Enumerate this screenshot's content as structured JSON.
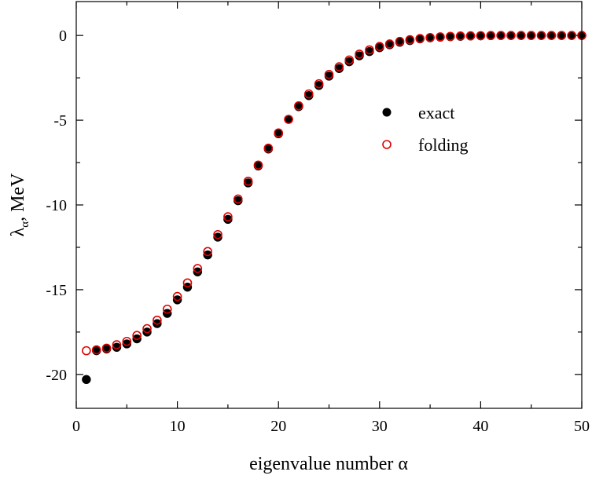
{
  "chart_data": {
    "type": "scatter",
    "title": "",
    "xlabel": "eigenvalue number α",
    "ylabel_main": "λ",
    "ylabel_sub": "α",
    "ylabel_rest": ", MeV",
    "xlim": [
      0,
      50
    ],
    "ylim": [
      -22,
      2
    ],
    "x_ticks": [
      0,
      10,
      20,
      30,
      40,
      50
    ],
    "y_ticks": [
      0,
      -5,
      -10,
      -15,
      -20
    ],
    "grid": false,
    "legend_position": "center-right",
    "series": [
      {
        "name": "exact",
        "marker": "filled-circle",
        "color": "#000000",
        "x": [
          1,
          2,
          3,
          4,
          5,
          6,
          7,
          8,
          9,
          10,
          11,
          12,
          13,
          14,
          15,
          16,
          17,
          18,
          19,
          20,
          21,
          22,
          23,
          24,
          25,
          26,
          27,
          28,
          29,
          30,
          31,
          32,
          33,
          34,
          35,
          36,
          37,
          38,
          39,
          40,
          41,
          42,
          43,
          44,
          45,
          46,
          47,
          48,
          49,
          50
        ],
        "y": [
          -20.3,
          -18.6,
          -18.5,
          -18.4,
          -18.2,
          -17.9,
          -17.5,
          -17.0,
          -16.4,
          -15.6,
          -14.85,
          -13.95,
          -12.95,
          -11.9,
          -10.85,
          -9.75,
          -8.7,
          -7.7,
          -6.7,
          -5.8,
          -4.95,
          -4.2,
          -3.55,
          -2.95,
          -2.4,
          -1.95,
          -1.55,
          -1.2,
          -0.95,
          -0.72,
          -0.55,
          -0.4,
          -0.3,
          -0.2,
          -0.14,
          -0.1,
          -0.07,
          -0.05,
          -0.03,
          -0.02,
          -0.01,
          0,
          0,
          0,
          0,
          0,
          0,
          0,
          0,
          0
        ]
      },
      {
        "name": "folding",
        "marker": "open-circle",
        "color": "#e00000",
        "x": [
          1,
          2,
          3,
          4,
          5,
          6,
          7,
          8,
          9,
          10,
          11,
          12,
          13,
          14,
          15,
          16,
          17,
          18,
          19,
          20,
          21,
          22,
          23,
          24,
          25,
          26,
          27,
          28,
          29,
          30,
          31,
          32,
          33,
          34,
          35,
          36,
          37,
          38,
          39,
          40,
          41,
          42,
          43,
          44,
          45,
          46,
          47,
          48,
          49,
          50
        ],
        "y": [
          -18.6,
          -18.55,
          -18.45,
          -18.25,
          -18.05,
          -17.7,
          -17.3,
          -16.8,
          -16.15,
          -15.4,
          -14.6,
          -13.75,
          -12.75,
          -11.75,
          -10.7,
          -9.65,
          -8.6,
          -7.65,
          -6.65,
          -5.75,
          -4.95,
          -4.15,
          -3.45,
          -2.85,
          -2.3,
          -1.85,
          -1.45,
          -1.1,
          -0.85,
          -0.65,
          -0.5,
          -0.35,
          -0.25,
          -0.18,
          -0.12,
          -0.08,
          -0.05,
          -0.03,
          -0.02,
          -0.01,
          0,
          0,
          0,
          0,
          0,
          0,
          0,
          0,
          0,
          0
        ]
      }
    ]
  }
}
